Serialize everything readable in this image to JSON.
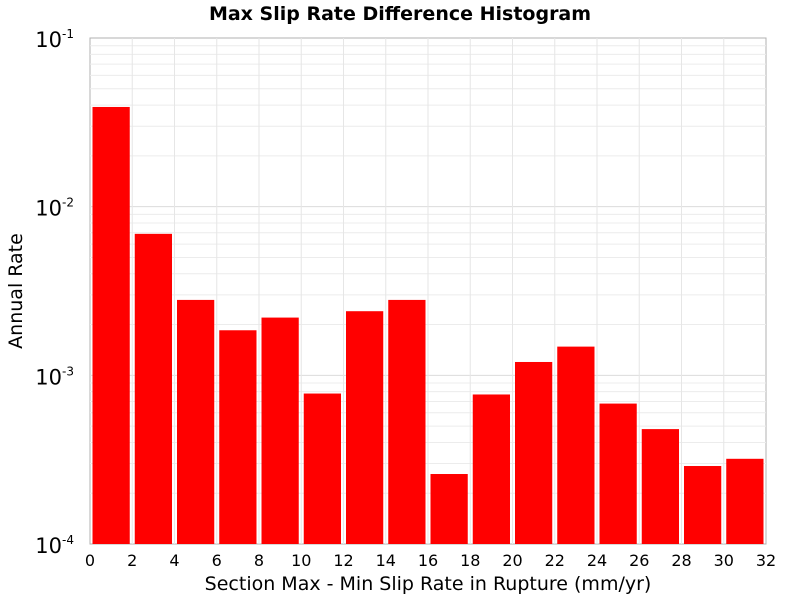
{
  "chart_data": {
    "type": "bar",
    "title": "Max Slip Rate Difference Histogram",
    "xlabel": "Section Max - Min Slip Rate in Rupture (mm/yr)",
    "ylabel": "Annual Rate",
    "xlim": [
      0,
      32
    ],
    "ylim": [
      0.0001,
      0.1
    ],
    "yscale": "log",
    "grid": true,
    "bar_color": "#ff0000",
    "bin_width": 2,
    "x_ticks": [
      "0",
      "2",
      "4",
      "6",
      "8",
      "10",
      "12",
      "14",
      "16",
      "18",
      "20",
      "22",
      "24",
      "26",
      "28",
      "30",
      "32"
    ],
    "y_ticks": [
      {
        "value": 0.1,
        "base": "10",
        "exp": "-1"
      },
      {
        "value": 0.01,
        "base": "10",
        "exp": "-2"
      },
      {
        "value": 0.001,
        "base": "10",
        "exp": "-3"
      },
      {
        "value": 0.0001,
        "base": "10",
        "exp": "-4"
      }
    ],
    "bins": [
      {
        "x0": 0,
        "x1": 2,
        "value": 0.039
      },
      {
        "x0": 2,
        "x1": 4,
        "value": 0.0069
      },
      {
        "x0": 4,
        "x1": 6,
        "value": 0.0028
      },
      {
        "x0": 6,
        "x1": 8,
        "value": 0.00185
      },
      {
        "x0": 8,
        "x1": 10,
        "value": 0.0022
      },
      {
        "x0": 10,
        "x1": 12,
        "value": 0.00078
      },
      {
        "x0": 12,
        "x1": 14,
        "value": 0.0024
      },
      {
        "x0": 14,
        "x1": 16,
        "value": 0.0028
      },
      {
        "x0": 16,
        "x1": 18,
        "value": 0.00026
      },
      {
        "x0": 18,
        "x1": 20,
        "value": 0.00077
      },
      {
        "x0": 20,
        "x1": 22,
        "value": 0.0012
      },
      {
        "x0": 22,
        "x1": 24,
        "value": 0.00148
      },
      {
        "x0": 24,
        "x1": 26,
        "value": 0.00068
      },
      {
        "x0": 26,
        "x1": 28,
        "value": 0.00048
      },
      {
        "x0": 28,
        "x1": 30,
        "value": 0.00029
      },
      {
        "x0": 30,
        "x1": 32,
        "value": 0.00032
      }
    ]
  }
}
